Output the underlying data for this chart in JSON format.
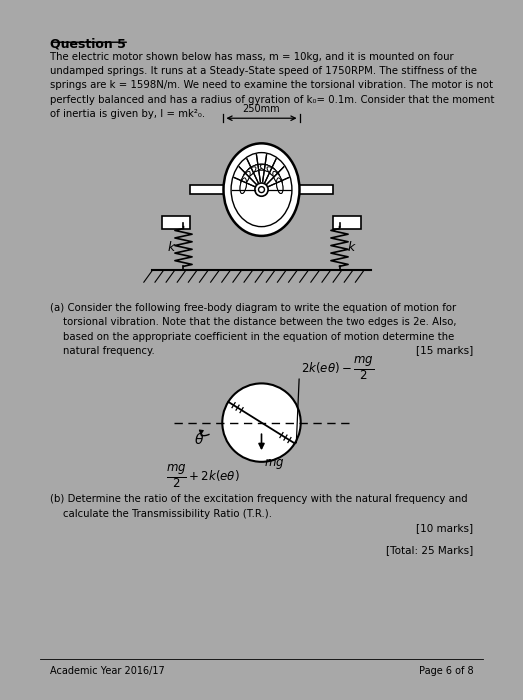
{
  "title": "Question 5",
  "background_color": "#ffffff",
  "page_bg": "#a8a8a8",
  "text_color": "#000000",
  "body_text": "The electric motor shown below has mass, m = 10kg, and it is mounted on four\nundamped springs. It runs at a Steady-State speed of 1750RPM. The stiffness of the\nsprings are k = 1598N/m. We need to examine the torsional vibration. The motor is not\nperfectly balanced and has a radius of gyration of k₀= 0.1m. Consider that the moment\nof inertia is given by, I = mk²₀.",
  "part_a_text": "(a) Consider the following free-body diagram to write the equation of motion for\n    torsional vibration. Note that the distance between the two edges is 2e. Also,\n    based on the appropriate coefficient in the equation of motion determine the\n    natural frequency.",
  "marks_a": "[15 marks]",
  "part_b_text": "(b) Determine the ratio of the excitation frequency with the natural frequency and\n    calculate the Transmissibility Ratio (T.R.).",
  "marks_b": "[10 marks]",
  "total_marks": "[Total: 25 Marks]",
  "footer_left": "Academic Year 2016/17",
  "footer_right": "Page 6 of 8",
  "dim_label": "250mm",
  "spring_label": "k"
}
